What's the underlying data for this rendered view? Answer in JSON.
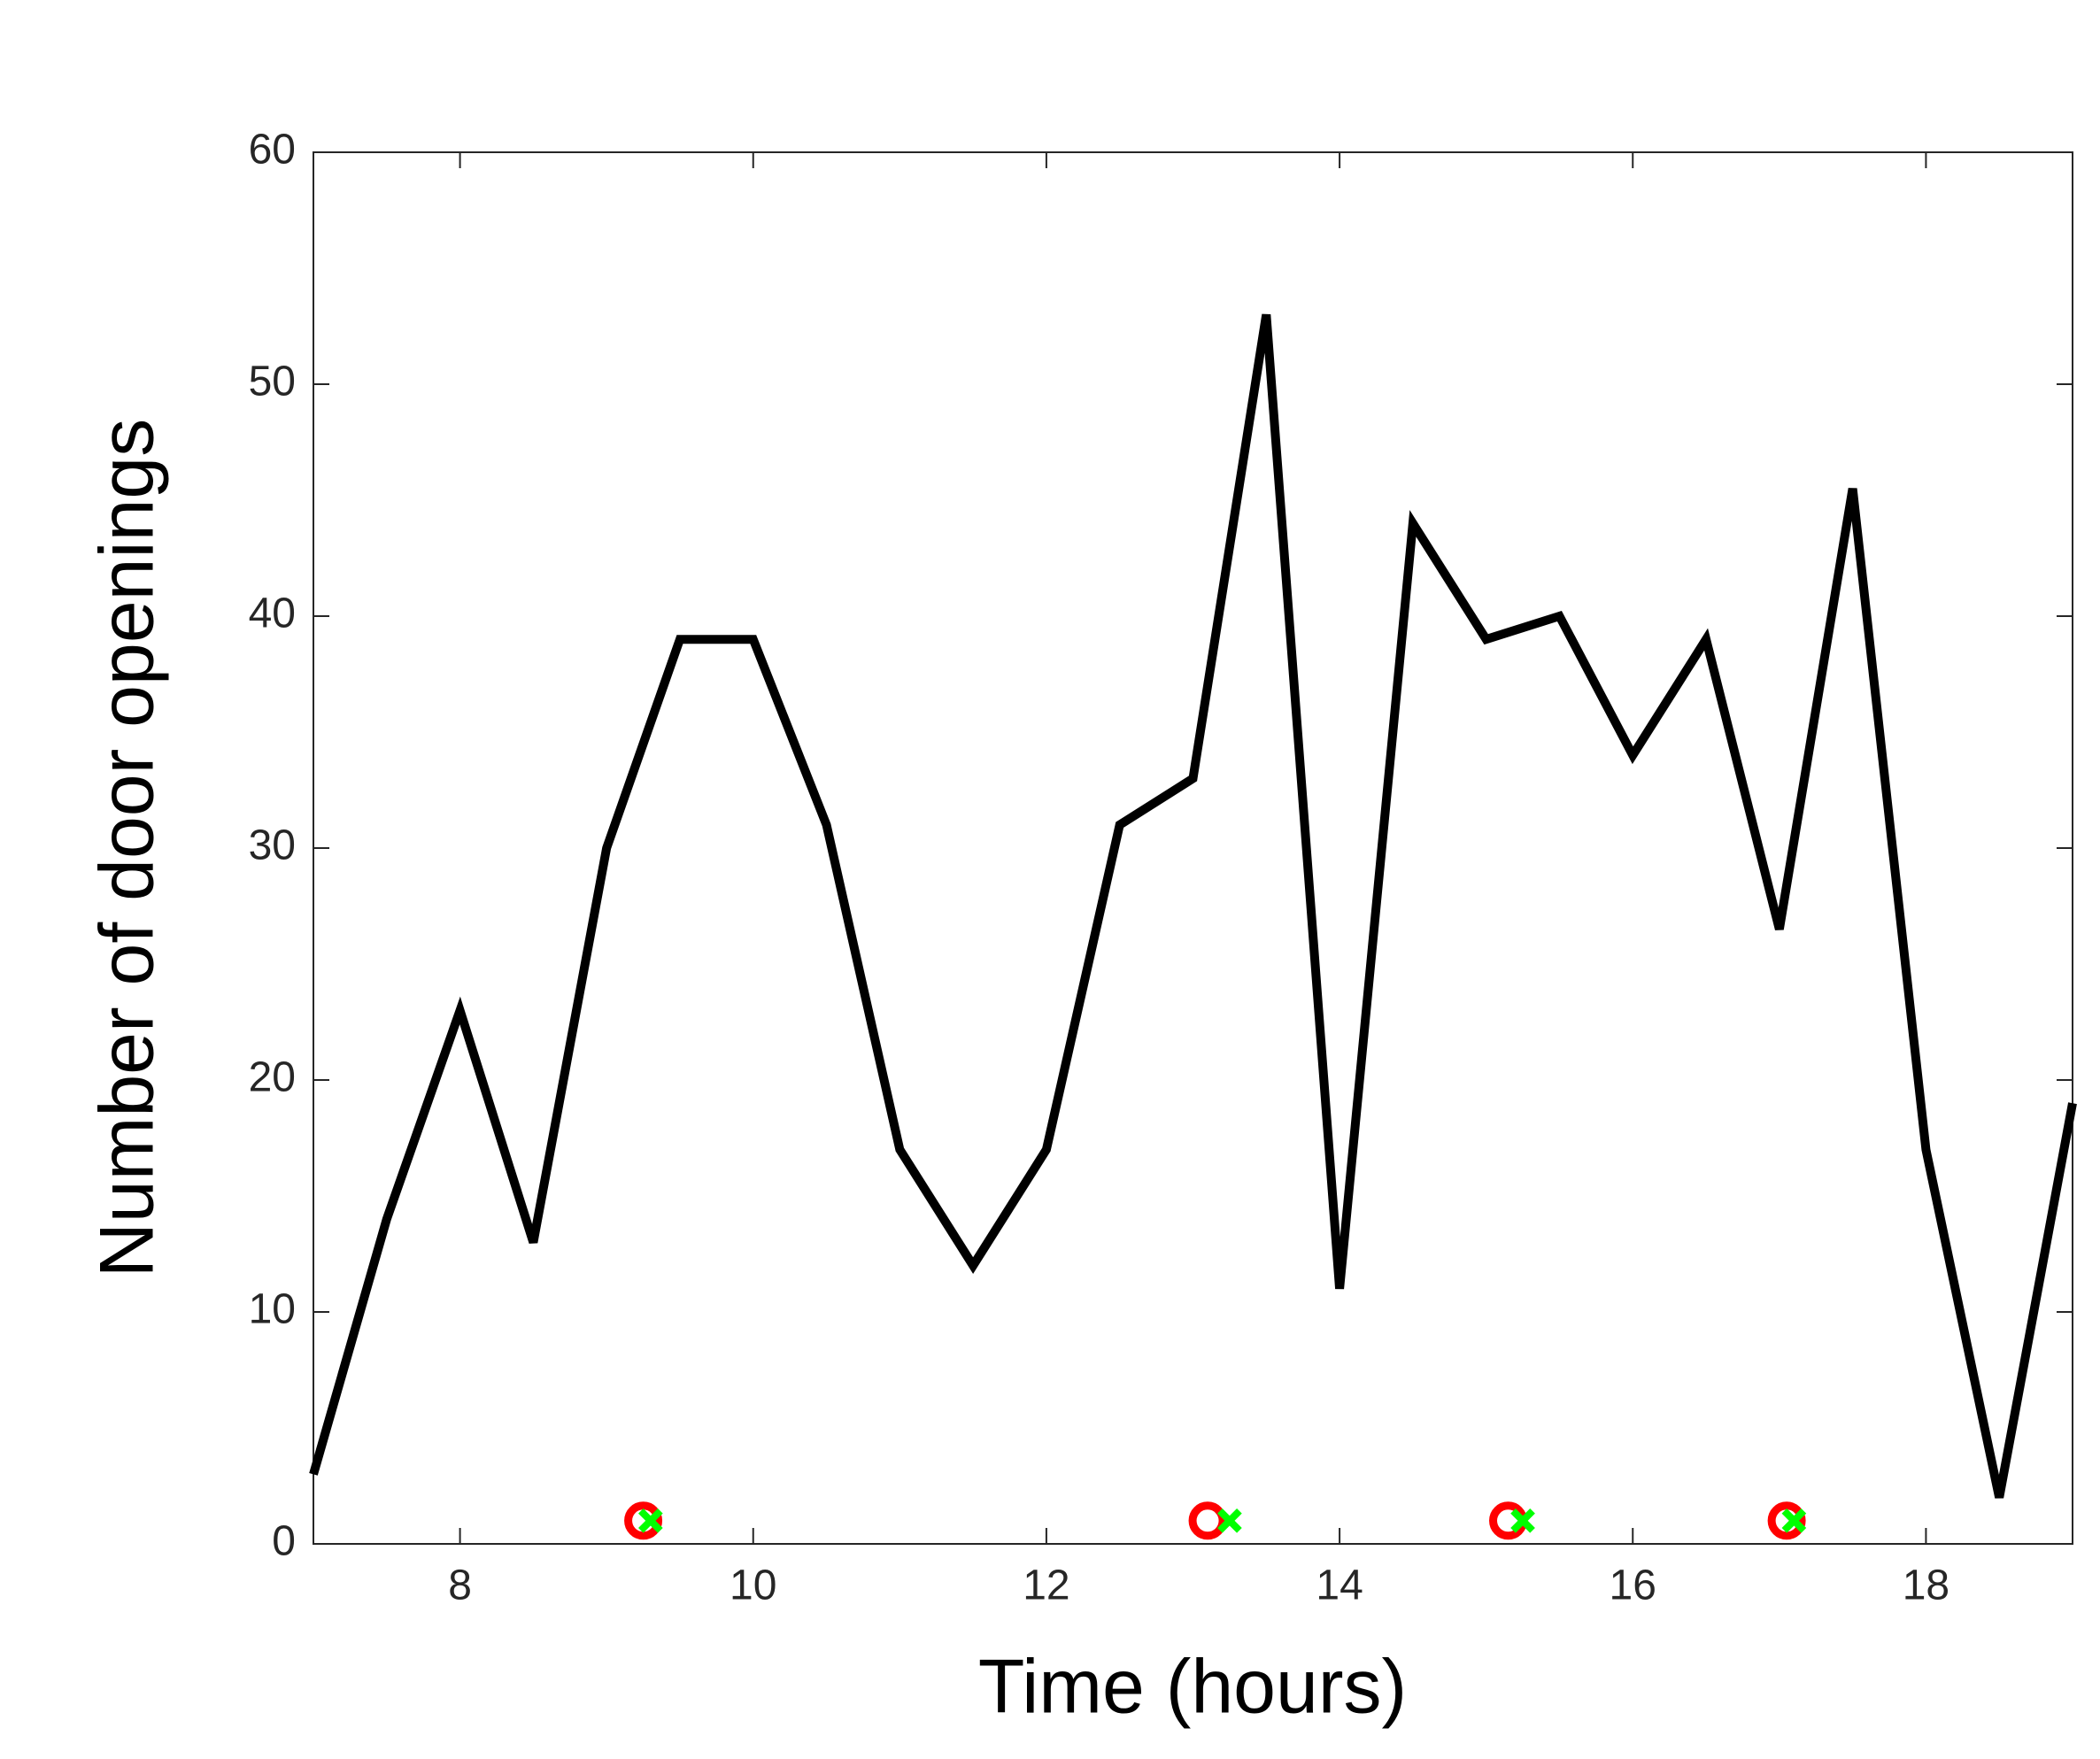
{
  "chart_data": {
    "type": "line",
    "x_label": "Time (hours)",
    "y_label": "Number of door openings",
    "x": [
      7,
      7.5,
      8,
      8.5,
      9,
      9.5,
      10,
      10.5,
      11,
      11.5,
      12,
      12.5,
      13,
      13.5,
      14,
      14.5,
      15,
      15.5,
      16,
      16.5,
      17,
      17.5,
      18,
      18.5,
      19
    ],
    "series": [
      {
        "color": "#000000",
        "values": [
          3,
          14,
          23,
          13,
          30,
          39,
          39,
          31,
          17,
          12,
          17,
          31,
          33,
          53,
          11,
          44,
          39,
          40,
          34,
          39,
          26.5,
          45.5,
          17,
          2,
          19
        ]
      }
    ],
    "markers": [
      {
        "marker": "circle",
        "color": "#ff0000",
        "x": [
          9.25,
          13.1,
          15.15,
          17.05
        ],
        "values": [
          1,
          1,
          1,
          1
        ]
      },
      {
        "marker": "x",
        "color": "#00ff00",
        "x": [
          9.3,
          13.25,
          15.25,
          17.1
        ],
        "values": [
          1,
          1,
          1,
          1
        ]
      }
    ],
    "xlim": [
      7,
      19
    ],
    "xticks": [
      8,
      10,
      12,
      14,
      16,
      18
    ],
    "ylim": [
      0,
      60
    ],
    "yticks": [
      0,
      10,
      20,
      30,
      40,
      50,
      60
    ],
    "grid": false
  }
}
